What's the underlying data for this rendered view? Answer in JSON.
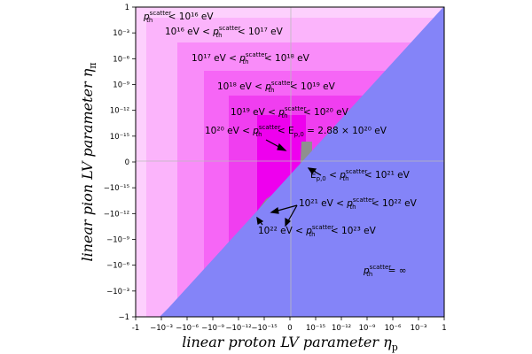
{
  "chart_data": {
    "type": "area",
    "xlabel": "linear proton LV parameter η",
    "xlabel_sub": "p",
    "ylabel": "linear pion LV parameter η",
    "ylabel_sub": "π",
    "xlim": [
      -1,
      1
    ],
    "ylim": [
      -1,
      1
    ],
    "scale": "symmetric log (signed decades from 10^-18 to 1)",
    "grid": false,
    "x_ticks": [
      "-1",
      "−10⁻³",
      "−10⁻⁶",
      "−10⁻⁹",
      "−10⁻¹²",
      "−10⁻¹⁵",
      "0",
      "10⁻¹⁵",
      "10⁻¹²",
      "10⁻⁹",
      "10⁻⁶",
      "10⁻³",
      "1"
    ],
    "y_ticks": [
      "1",
      "10⁻³",
      "10⁻⁶",
      "10⁻⁹",
      "10⁻¹²",
      "10⁻¹⁵",
      "0",
      "−10⁻¹⁵",
      "−10⁻¹²",
      "−10⁻⁹",
      "−10⁻⁶",
      "−10⁻³",
      "−1"
    ],
    "regions": [
      {
        "label": "p_th^scatter < 10^16 eV",
        "color": "#fdd0fd"
      },
      {
        "label": "10^16 eV < p_th^scatter < 10^17 eV",
        "color": "#fbb4fb"
      },
      {
        "label": "10^17 eV < p_th^scatter < 10^18 eV",
        "color": "#f98cf9"
      },
      {
        "label": "10^18 eV < p_th^scatter < 10^19 eV",
        "color": "#f666f6"
      },
      {
        "label": "10^19 eV < p_th^scatter < 10^20 eV",
        "color": "#f03ef0"
      },
      {
        "label": "10^20 eV < p_th^scatter < E_p,0 = 2.88 × 10^20 eV",
        "color": "#ee00ee"
      },
      {
        "label": "E_p,0 < p_th^scatter < 10^21 eV",
        "color": "#8f8f8f"
      },
      {
        "label": "10^21 eV < p_th^scatter < 10^22 eV",
        "color": "#6a6a6a"
      },
      {
        "label": "10^22 eV < p_th^scatter < 10^23 eV",
        "color": "#222222"
      },
      {
        "label": "p_th^scatter = ∞",
        "color": "#8484f8"
      }
    ],
    "annotations": [
      {
        "main": "p",
        "sub": "th",
        "sup": "scatter",
        "rest": " < 10¹⁶ eV"
      },
      {
        "pre": "10¹⁶ eV < ",
        "main": "p",
        "sub": "th",
        "sup": "scatter",
        "rest": " < 10¹⁷ eV"
      },
      {
        "pre": "10¹⁷ eV < ",
        "main": "p",
        "sub": "th",
        "sup": "scatter",
        "rest": " < 10¹⁸ eV"
      },
      {
        "pre": "10¹⁸ eV < ",
        "main": "p",
        "sub": "th",
        "sup": "scatter",
        "rest": " < 10¹⁹ eV"
      },
      {
        "pre": "10¹⁹ eV < ",
        "main": "p",
        "sub": "th",
        "sup": "scatter",
        "rest": " < 10²⁰ eV"
      },
      {
        "pre": "10²⁰ eV < ",
        "main": "p",
        "sub": "th",
        "sup": "scatter",
        "rest": " < E",
        "rest_sub": "p,0",
        "rest2": " = 2.88 × 10²⁰ eV"
      },
      {
        "pre": "E",
        "pre_sub": "p,0",
        "pre2": " < ",
        "main": "p",
        "sub": "th",
        "sup": "scatter",
        "rest": " < 10²¹ eV"
      },
      {
        "pre": "10²¹ eV < ",
        "main": "p",
        "sub": "th",
        "sup": "scatter",
        "rest": " < 10²² eV"
      },
      {
        "pre": "10²² eV < ",
        "main": "p",
        "sub": "th",
        "sup": "scatter",
        "rest": " < 10²³ eV"
      },
      {
        "main": "p",
        "sub": "th",
        "sup": "scatter",
        "rest": " = ∞"
      }
    ]
  }
}
